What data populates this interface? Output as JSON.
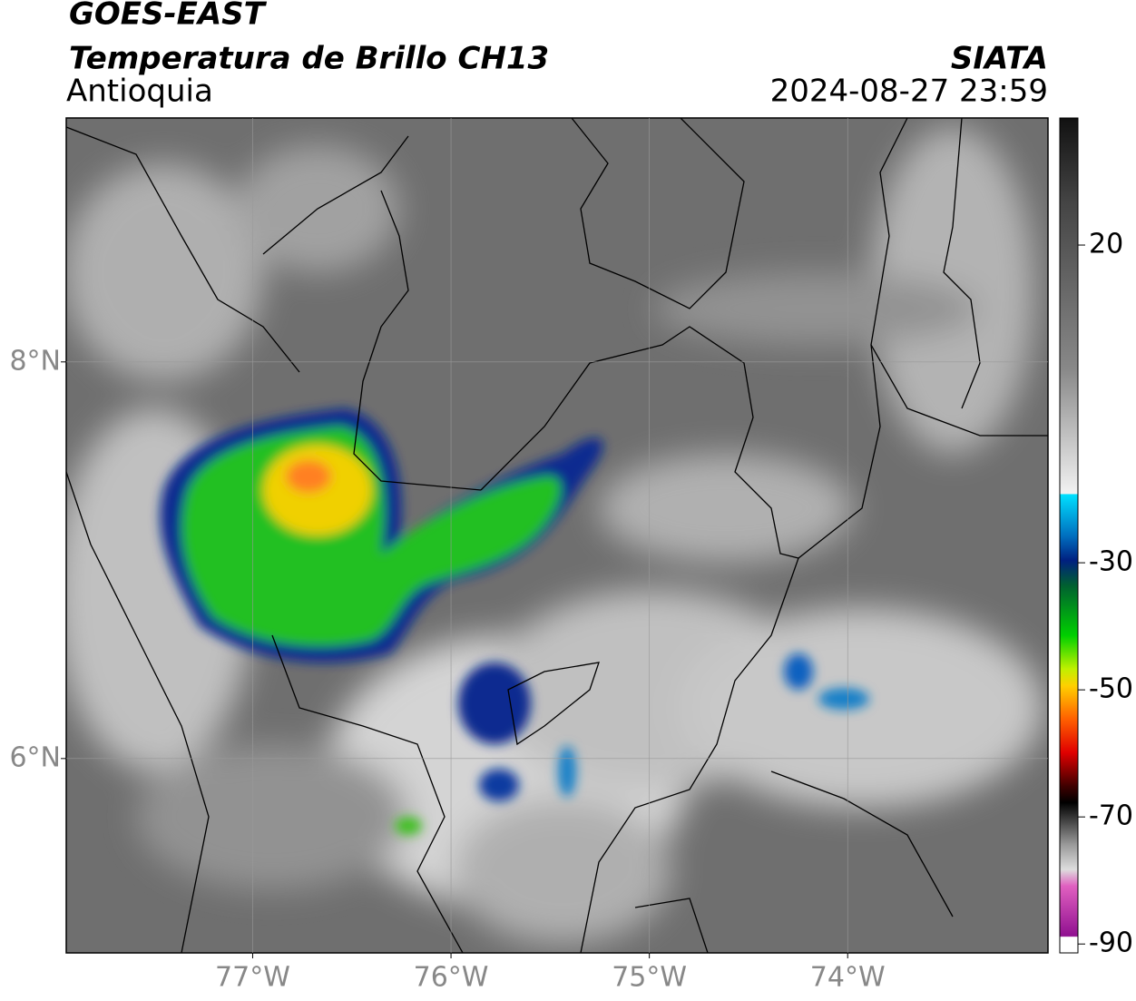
{
  "header": {
    "satellite": "GOES-EAST",
    "product": "Temperatura de Brillo CH13",
    "region": "Antioquia",
    "source": "SIATA",
    "datetime": "2024-08-27 23:59"
  },
  "map": {
    "xlim": [
      -77.94,
      -72.99
    ],
    "ylim": [
      5.02,
      9.23
    ],
    "xticks": [
      {
        "value": -77,
        "label": "77°W"
      },
      {
        "value": -76,
        "label": "76°W"
      },
      {
        "value": -75,
        "label": "75°W"
      },
      {
        "value": -74,
        "label": "74°W"
      }
    ],
    "yticks": [
      {
        "value": 8,
        "label": "8°N"
      },
      {
        "value": 6,
        "label": "6°N"
      }
    ],
    "grid": true
  },
  "colorbar": {
    "lim": [
      -91.4,
      40
    ],
    "ticks": [
      20,
      -30,
      -50,
      -70,
      -90
    ]
  }
}
